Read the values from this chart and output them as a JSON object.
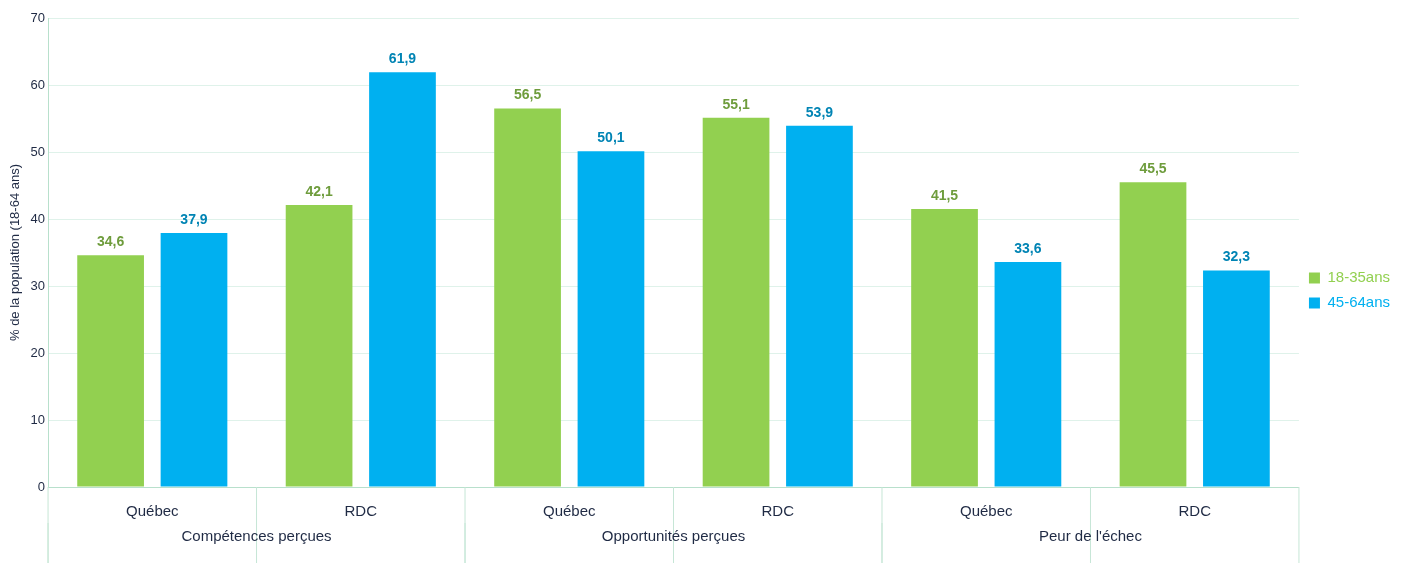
{
  "chart_data": {
    "type": "bar",
    "ylabel": "% de la population (18-64 ans)",
    "categories": [
      "Québec",
      "RDC",
      "Québec",
      "RDC",
      "Québec",
      "RDC"
    ],
    "series": [
      {
        "name": "18-35ans",
        "color": "#92d050",
        "values": [
          34.6,
          42.1,
          56.5,
          55.1,
          41.5,
          45.5
        ],
        "value_labels": [
          "34,6",
          "42,1",
          "56,5",
          "55,1",
          "41,5",
          "45,5"
        ]
      },
      {
        "name": "45-64ans",
        "color": "#00b0f0",
        "values": [
          37.9,
          61.9,
          50.1,
          53.9,
          33.6,
          32.3
        ],
        "value_labels": [
          "37,9",
          "61,9",
          "50,1",
          "53,9",
          "33,6",
          "32,3"
        ]
      }
    ],
    "annotations": [
      "Compétences perçues",
      "Opportunités perçues",
      "Peur de l'échec"
    ],
    "ylim": [
      0,
      70
    ],
    "yticks": [
      0,
      10,
      20,
      30,
      40,
      50,
      60,
      70
    ],
    "grid": "y",
    "legend": "right"
  }
}
